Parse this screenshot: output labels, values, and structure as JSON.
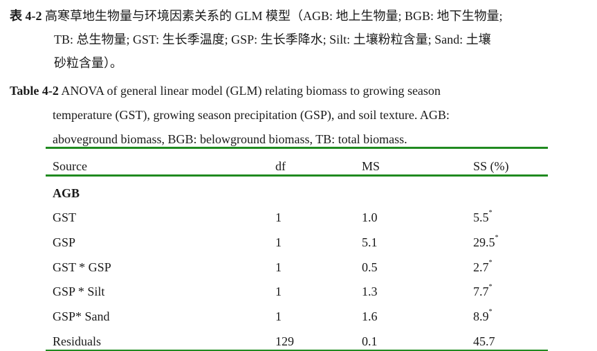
{
  "caption_zh": {
    "label": "表 4-2",
    "lines": [
      "高寒草地生物量与环境因素关系的 GLM 模型（AGB: 地上生物量; BGB: 地下生物量;",
      "TB: 总生物量; GST: 生长季温度; GSP: 生长季降水; Silt: 土壤粉粒含量; Sand: 土壤",
      "砂粒含量）。"
    ]
  },
  "caption_en": {
    "label": "Table 4-2",
    "lines": [
      "ANOVA of general linear model (GLM) relating biomass to growing season",
      "temperature (GST), growing season precipitation (GSP), and soil texture. AGB:",
      "aboveground biomass, BGB: belowground biomass, TB: total biomass."
    ]
  },
  "table": {
    "headers": [
      "Source",
      "df",
      "MS",
      "SS (%)"
    ],
    "section": "AGB",
    "rows": [
      {
        "source": "GST",
        "df": "1",
        "ms": "1.0",
        "ss": "5.5",
        "mark": "*"
      },
      {
        "source": "GSP",
        "df": "1",
        "ms": "5.1",
        "ss": "29.5",
        "mark": "*"
      },
      {
        "source": "GST * GSP",
        "df": "1",
        "ms": "0.5",
        "ss": "2.7",
        "mark": "*"
      },
      {
        "source": "GSP * Silt",
        "df": "1",
        "ms": "1.3",
        "ss": "7.7",
        "mark": "*"
      },
      {
        "source": "GSP* Sand",
        "df": "1",
        "ms": "1.6",
        "ss": "8.9",
        "mark": "*"
      },
      {
        "source": "Residuals",
        "df": "129",
        "ms": "0.1",
        "ss": "45.7",
        "mark": ""
      }
    ]
  },
  "colors": {
    "rule": "#1f8a1f",
    "text": "#1a1a1a"
  }
}
